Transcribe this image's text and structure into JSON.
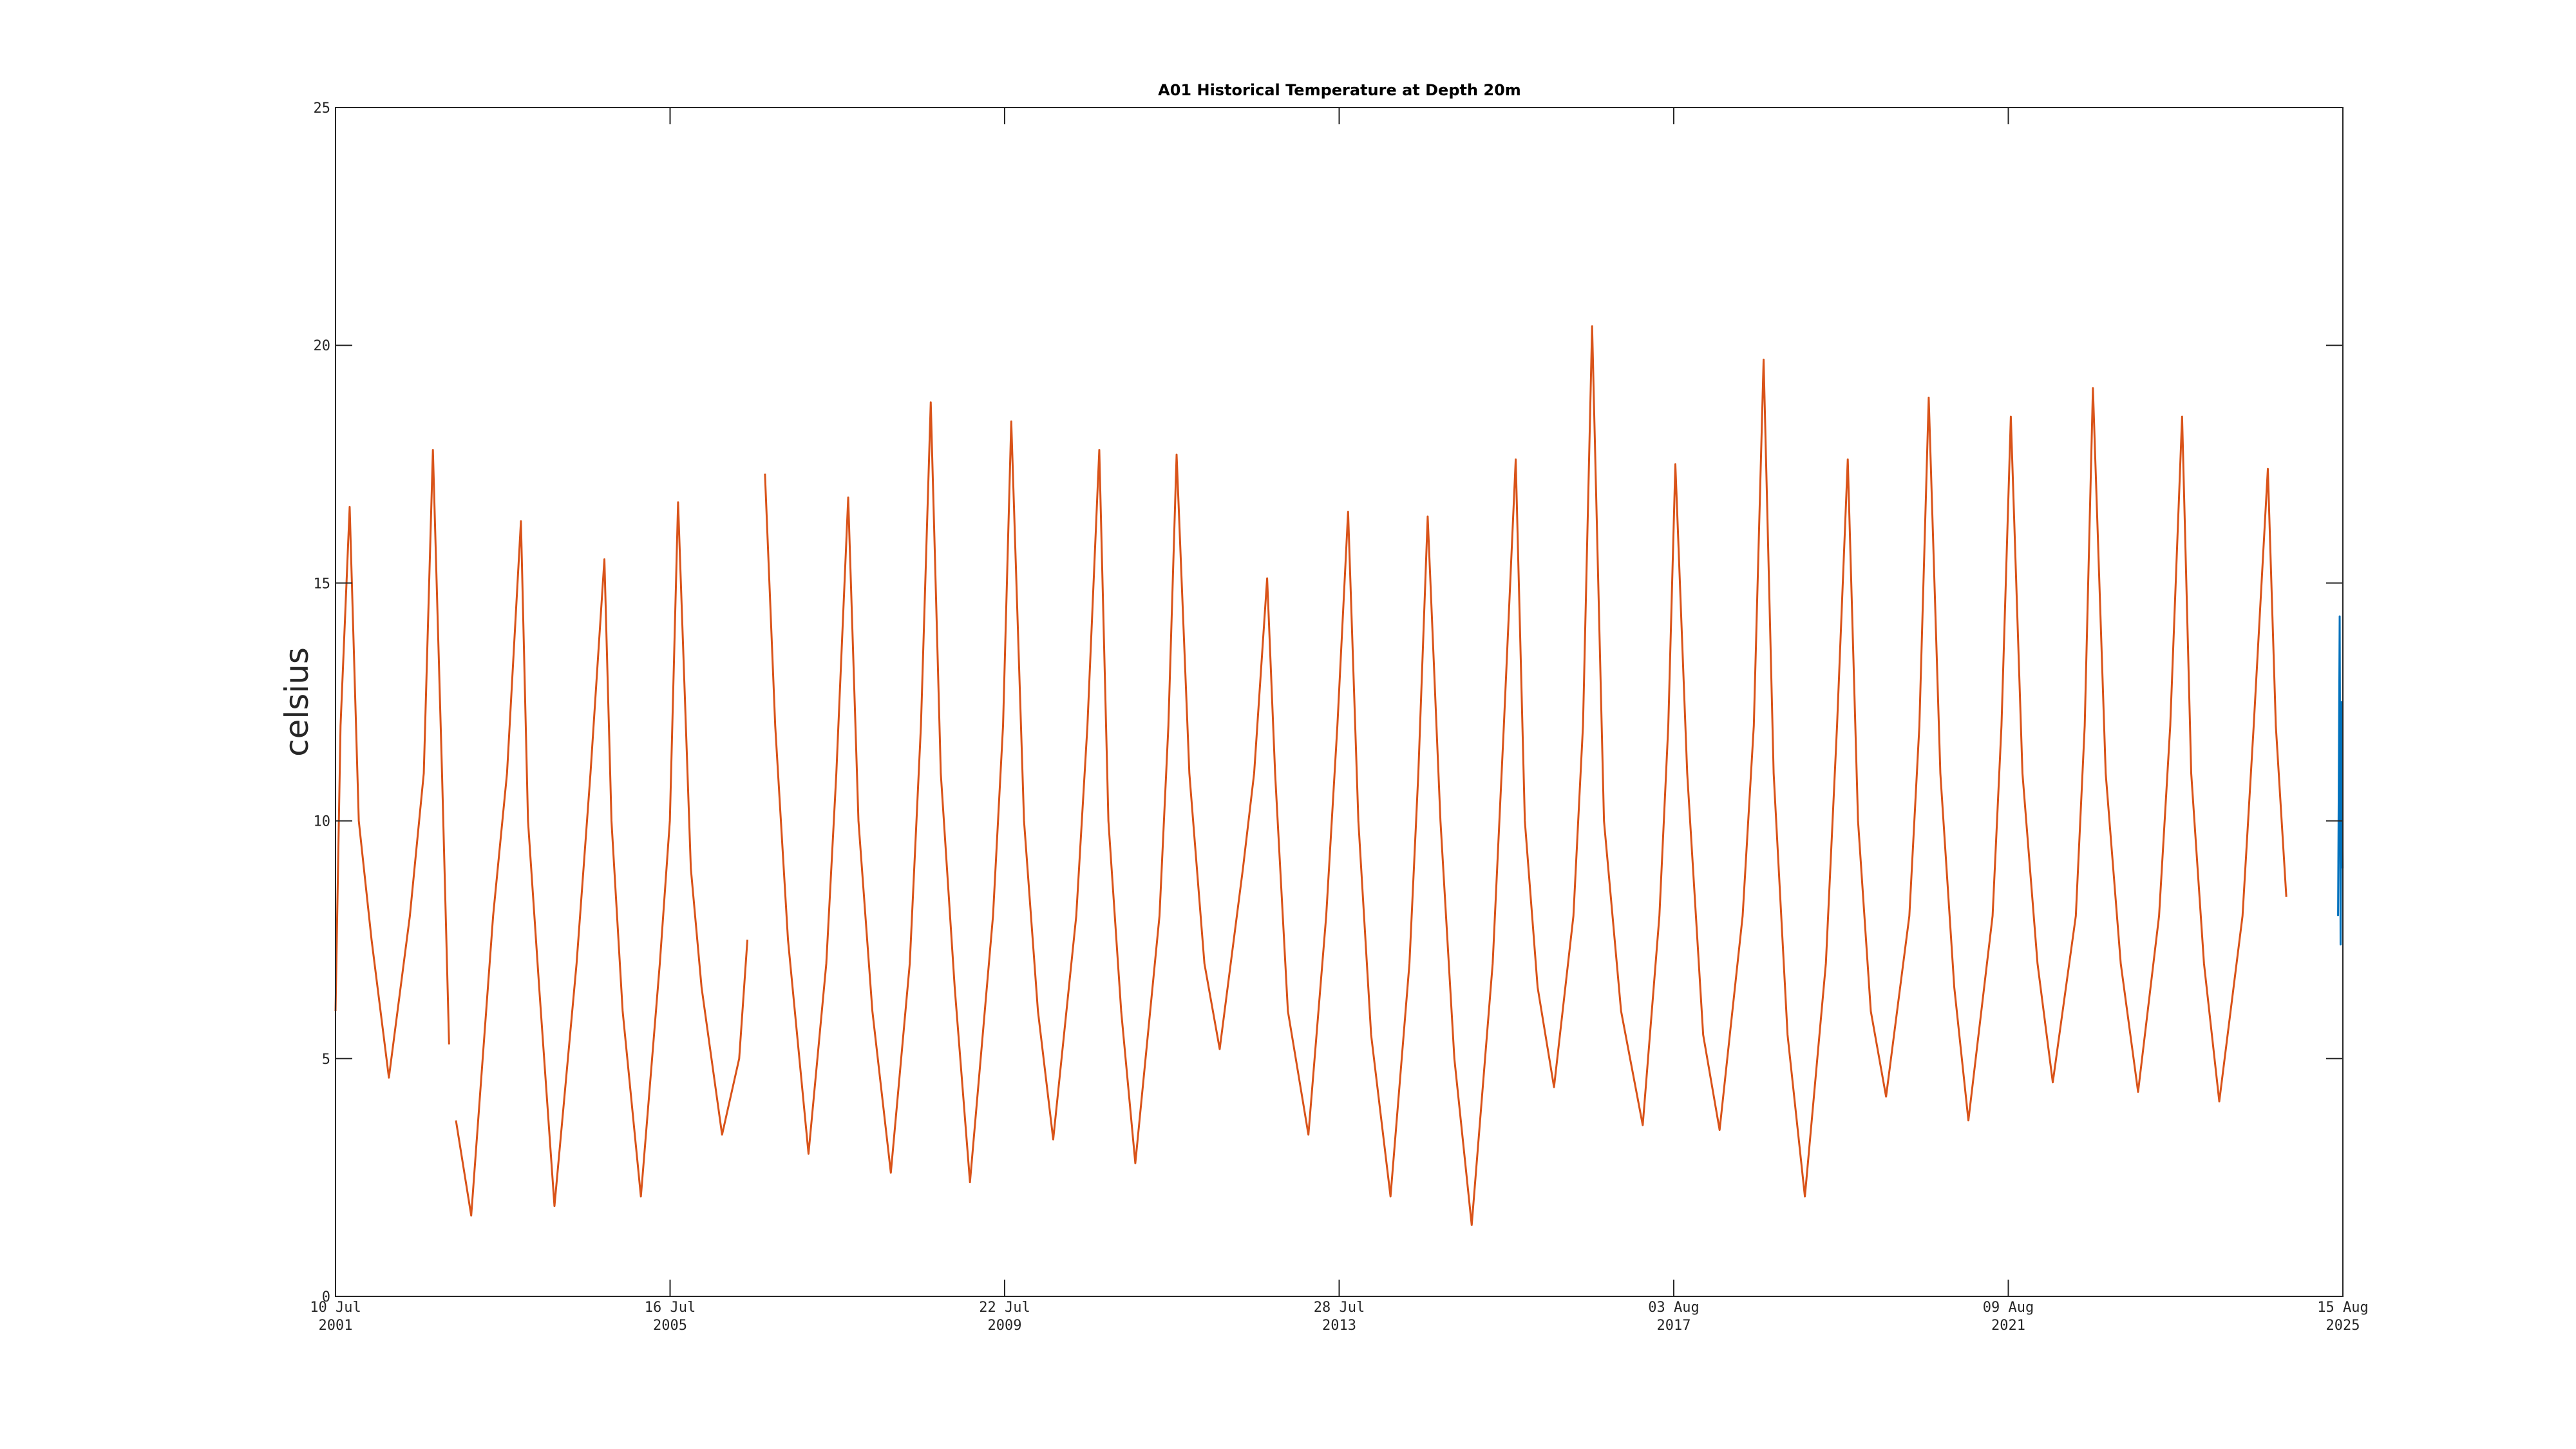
{
  "chart_data": {
    "type": "line",
    "title": "A01 Historical Temperature at Depth 20m",
    "ylabel": "celsius",
    "xlim": [
      "2001-07-10",
      "2025-08-15"
    ],
    "xticks": [
      {
        "value": "2001-07-10",
        "label": [
          "10 Jul",
          "2001"
        ]
      },
      {
        "value": "2005-07-16",
        "label": [
          "16 Jul",
          "2005"
        ]
      },
      {
        "value": "2009-07-22",
        "label": [
          "22 Jul",
          "2009"
        ]
      },
      {
        "value": "2013-07-28",
        "label": [
          "28 Jul",
          "2013"
        ]
      },
      {
        "value": "2017-08-03",
        "label": [
          "03 Aug",
          "2017"
        ]
      },
      {
        "value": "2021-08-09",
        "label": [
          "09 Aug",
          "2021"
        ]
      },
      {
        "value": "2025-08-15",
        "label": [
          "15 Aug",
          "2025"
        ]
      }
    ],
    "ylim": [
      0,
      25
    ],
    "yticks": [
      0,
      5,
      10,
      15,
      20,
      25
    ],
    "grid": false,
    "series": [
      {
        "color": "#d95319",
        "x": [
          "2001-07-10",
          "2001-08-01",
          "2001-09-10",
          "2001-10-20",
          "2001-12-15",
          "2002-03-01",
          "2002-06-01",
          "2002-08-01",
          "2002-09-10",
          "2002-10-20",
          "2002-11-20",
          "2002-12-05",
          "2002-12-20",
          "2003-02-25",
          "2003-06-01",
          "2003-08-01",
          "2003-10-01",
          "2003-11-01",
          "2003-12-20",
          "2004-02-25",
          "2004-06-01",
          "2004-08-01",
          "2004-10-01",
          "2004-11-01",
          "2004-12-20",
          "2005-03-10",
          "2005-06-01",
          "2005-07-15",
          "2005-08-20",
          "2005-10-15",
          "2005-12-01",
          "2006-03-01",
          "2006-05-15",
          "2006-06-20",
          "2006-07-15",
          "2006-09-05",
          "2006-10-20",
          "2006-12-15",
          "2007-03-15",
          "2007-06-01",
          "2007-07-15",
          "2007-09-05",
          "2007-10-20",
          "2007-12-20",
          "2008-03-10",
          "2008-06-01",
          "2008-07-20",
          "2008-09-01",
          "2008-10-15",
          "2008-12-15",
          "2009-02-20",
          "2009-06-01",
          "2009-07-15",
          "2009-08-20",
          "2009-10-15",
          "2009-12-15",
          "2010-02-20",
          "2010-06-01",
          "2010-07-20",
          "2010-09-10",
          "2010-10-20",
          "2010-12-15",
          "2011-02-15",
          "2011-06-01",
          "2011-07-10",
          "2011-08-15",
          "2011-10-10",
          "2011-12-15",
          "2012-02-20",
          "2012-06-01",
          "2012-07-20",
          "2012-09-15",
          "2012-10-20",
          "2012-12-15",
          "2013-03-15",
          "2013-06-01",
          "2013-07-20",
          "2013-09-05",
          "2013-10-20",
          "2013-12-15",
          "2014-03-10",
          "2014-06-01",
          "2014-07-10",
          "2014-08-20",
          "2014-10-15",
          "2014-12-15",
          "2015-03-01",
          "2015-06-01",
          "2015-07-20",
          "2015-09-10",
          "2015-10-20",
          "2015-12-15",
          "2016-02-25",
          "2016-05-20",
          "2016-07-01",
          "2016-08-10",
          "2016-10-01",
          "2016-12-15",
          "2017-03-20",
          "2017-06-01",
          "2017-07-10",
          "2017-08-10",
          "2017-10-01",
          "2017-12-10",
          "2018-02-20",
          "2018-06-01",
          "2018-07-20",
          "2018-09-01",
          "2018-10-15",
          "2018-12-15",
          "2019-03-01",
          "2019-06-01",
          "2019-07-20",
          "2019-09-05",
          "2019-10-20",
          "2019-12-15",
          "2020-02-20",
          "2020-06-01",
          "2020-07-15",
          "2020-08-25",
          "2020-10-15",
          "2020-12-15",
          "2021-02-15",
          "2021-06-01",
          "2021-07-10",
          "2021-08-20",
          "2021-10-10",
          "2021-12-15",
          "2022-02-20",
          "2022-06-01",
          "2022-07-10",
          "2022-08-15",
          "2022-10-10",
          "2022-12-15",
          "2023-03-01",
          "2023-06-01",
          "2023-07-20",
          "2023-09-10",
          "2023-10-20",
          "2023-12-15",
          "2024-02-20",
          "2024-06-01",
          "2024-07-20",
          "2024-09-20",
          "2024-10-25",
          "2024-12-10"
        ],
        "values": [
          6,
          12,
          16.6,
          10,
          7.5,
          4.6,
          8,
          11,
          17.8,
          11,
          5.3,
          null,
          3.7,
          1.7,
          8,
          11,
          16.3,
          10,
          6.5,
          1.9,
          7,
          11,
          15.5,
          10,
          6,
          2.1,
          7,
          10,
          16.7,
          9,
          6.5,
          3.4,
          5,
          7.5,
          null,
          17.3,
          12,
          7.5,
          3.0,
          7,
          11,
          16.8,
          10,
          6,
          2.6,
          7,
          12,
          18.8,
          11,
          6.5,
          2.4,
          8,
          12,
          18.4,
          10,
          6,
          3.3,
          8,
          12,
          17.8,
          10,
          6,
          2.8,
          8,
          12,
          17.7,
          11,
          7,
          5.2,
          9,
          11,
          15.1,
          11,
          6,
          3.4,
          8,
          12,
          16.5,
          10,
          5.5,
          2.1,
          7,
          11,
          16.4,
          10,
          5,
          1.5,
          7,
          12,
          17.6,
          10,
          6.5,
          4.4,
          8,
          12,
          20.4,
          10,
          6,
          3.6,
          8,
          12,
          17.5,
          11,
          5.5,
          3.5,
          8,
          12,
          19.7,
          11,
          5.5,
          2.1,
          7,
          12,
          17.6,
          10,
          6,
          4.2,
          8,
          12,
          18.9,
          11,
          6.5,
          3.7,
          8,
          12,
          18.5,
          11,
          7,
          4.5,
          8,
          12,
          19.1,
          11,
          7,
          4.3,
          8,
          12,
          18.5,
          11,
          7,
          4.1,
          8,
          12,
          17.4,
          12,
          8.4
        ]
      },
      {
        "color": "#0072bd",
        "x": [
          "2025-07-25",
          "2025-08-01",
          "2025-08-05",
          "2025-08-10",
          "2025-08-14"
        ],
        "values": [
          8,
          14.3,
          7.4,
          12.5,
          9
        ]
      }
    ]
  }
}
